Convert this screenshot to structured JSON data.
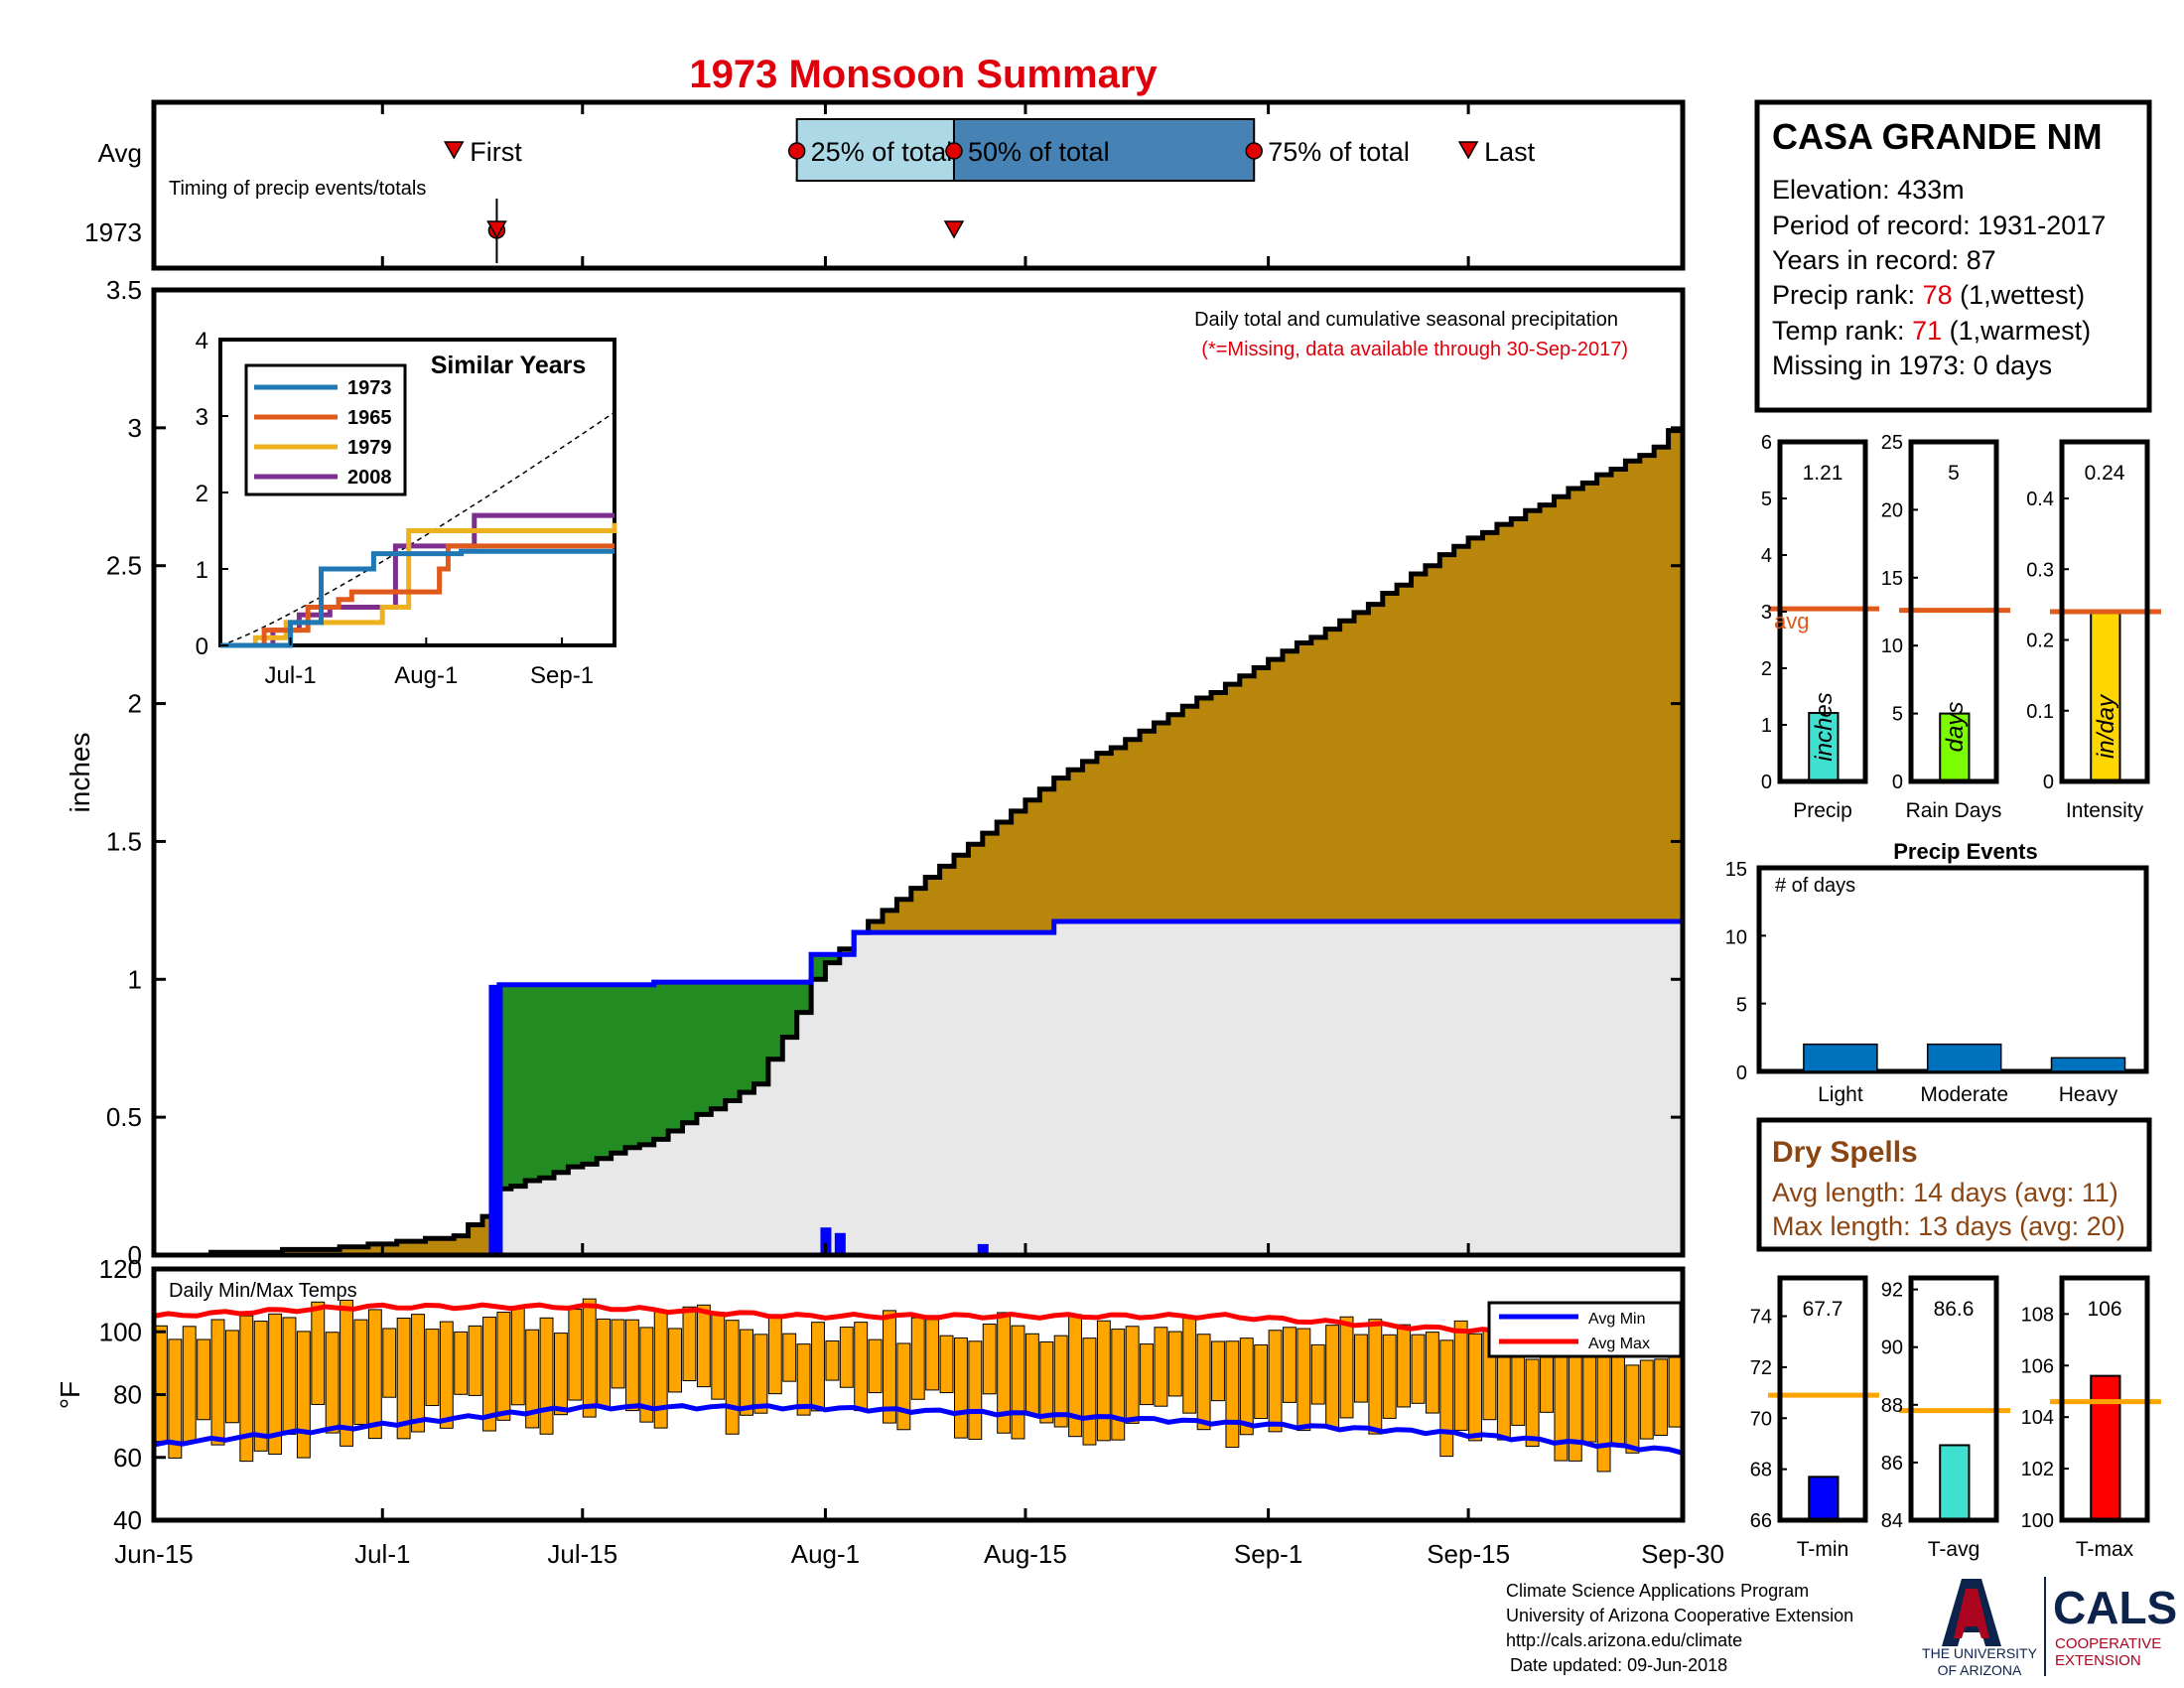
{
  "title": "1973 Monsoon Summary",
  "timing": {
    "row_avg": "Avg",
    "row_year": "1973",
    "caption": "Timing of precip events/totals",
    "first": "First",
    "p25": "25% of total",
    "p50": "50% of total",
    "p75": "75% of total",
    "last": "Last",
    "avg_first_day": 21,
    "avg_25_day": 45,
    "avg_50_day": 56,
    "avg_75_day": 77,
    "avg_last_day": 92,
    "year_first_day": 24,
    "year_last_day": 56
  },
  "station": {
    "name": "CASA GRANDE NM",
    "elevation_label": "Elevation:",
    "elevation": "433m",
    "period_label": "Period of record:",
    "period": "1931-2017",
    "years_label": "Years in record:",
    "years": "87",
    "precip_rank_label": "Precip rank:",
    "precip_rank": "78",
    "precip_rank_note": "(1,wettest)",
    "temp_rank_label": "Temp rank:",
    "temp_rank": "71",
    "temp_rank_note": "(1,warmest)",
    "missing_label": "Missing in 1973:",
    "missing": "0 days"
  },
  "main": {
    "note1": "Daily total and cumulative seasonal precipitation",
    "note2": "(*=Missing, data available through 30-Sep-2017)",
    "ylabel": "inches",
    "yticks": [
      "0",
      "0.5",
      "1",
      "1.5",
      "2",
      "2.5",
      "3",
      "3.5"
    ],
    "xticks": [
      "Jun-15",
      "Jul-1",
      "Jul-15",
      "Aug-1",
      "Aug-15",
      "Sep-1",
      "Sep-15",
      "Sep-30"
    ]
  },
  "inset": {
    "title": "Similar Years",
    "legend": [
      "1973",
      "1965",
      "1979",
      "2008"
    ],
    "yticks": [
      "0",
      "1",
      "2",
      "3",
      "4"
    ],
    "xticks": [
      "Jul-1",
      "Aug-1",
      "Sep-1"
    ]
  },
  "temps": {
    "title": "Daily Min/Max Temps",
    "ylabel": "°F",
    "yticks": [
      "40",
      "60",
      "80",
      "100",
      "120"
    ],
    "legend_min": "Avg Min",
    "legend_max": "Avg Max"
  },
  "mini": {
    "precip": {
      "value": "1.21",
      "label": "Precip",
      "unit": "inches",
      "avg_label": "avg",
      "yticks": [
        "0",
        "1",
        "2",
        "3",
        "4",
        "5",
        "6"
      ],
      "bar": 1.21,
      "avg": 3.05
    },
    "raindays": {
      "value": "5",
      "label": "Rain Days",
      "unit": "days",
      "yticks": [
        "0",
        "5",
        "10",
        "15",
        "20",
        "25"
      ],
      "bar": 5,
      "avg": 12.6
    },
    "intensity": {
      "value": "0.24",
      "label": "Intensity",
      "unit": "in/day",
      "yticks": [
        "0",
        "0.1",
        "0.2",
        "0.3",
        "0.4"
      ],
      "bar": 0.24,
      "avg": 0.24
    }
  },
  "events": {
    "title": "Precip Events",
    "ylabel": "# of days",
    "yticks": [
      "0",
      "5",
      "10",
      "15"
    ],
    "categories": [
      "Light",
      "Moderate",
      "Heavy"
    ],
    "values": [
      2,
      2,
      1
    ]
  },
  "dry": {
    "title": "Dry Spells",
    "avg_line": "Avg length: 14 days (avg: 11)",
    "max_line": "Max length: 13 days (avg: 20)"
  },
  "tbox": {
    "tmin": {
      "value": "67.7",
      "label": "T-min",
      "yticks": [
        "66",
        "68",
        "70",
        "72",
        "74"
      ],
      "bar": 67.7,
      "avg": 70.9
    },
    "tavg": {
      "value": "86.6",
      "label": "T-avg",
      "yticks": [
        "84",
        "86",
        "88",
        "90",
        "92"
      ],
      "bar": 86.6,
      "avg": 87.8
    },
    "tmax": {
      "value": "106",
      "label": "T-max",
      "yticks": [
        "100",
        "102",
        "104",
        "106",
        "108"
      ],
      "bar": 105.6,
      "avg": 104.6
    }
  },
  "footer": {
    "line1": "Climate Science Applications Program",
    "line2": "University of Arizona Cooperative Extension",
    "line3": "http://cals.arizona.edu/climate",
    "line4": "Date updated: 09-Jun-2018",
    "ua1": "THE UNIVERSITY",
    "ua2": "OF ARIZONA",
    "cals": "CALS",
    "cals1": "COOPERATIVE",
    "cals2": "EXTENSION"
  },
  "colors": {
    "title": "#e0000b",
    "avg_fill": "#b8860b",
    "above_fill": "#228b22",
    "year_fill": "#e8e8e8",
    "year_line": "#0000ff",
    "temp_bar": "#ffa500",
    "avg_max": "#ff0000",
    "avg_min": "#0000ff",
    "s1973": "#1f77b4",
    "s1965": "#e05a1c",
    "s1979": "#edb120",
    "s2008": "#7e2f8e"
  },
  "chart_data": [
    {
      "type": "area",
      "title": "",
      "xlabel": "",
      "ylabel": "inches",
      "x_days_from_jun15": [
        0,
        7,
        14,
        21,
        23,
        24,
        27,
        35,
        42,
        45,
        46,
        49,
        56,
        63,
        70,
        77,
        84,
        91,
        98,
        105,
        107
      ],
      "series": [
        {
          "values": [
            0,
            0.01,
            0.03,
            0.07,
            0.14,
            0.24,
            0.28,
            0.42,
            0.62,
            0.88,
            1.0,
            1.17,
            1.45,
            1.73,
            1.93,
            2.13,
            2.33,
            2.57,
            2.75,
            2.93,
            3.04
          ]
        },
        {
          "name": "1973",
          "values": [
            0,
            0,
            0,
            0,
            0,
            0.98,
            0.98,
            0.99,
            0.99,
            0.99,
            1.09,
            1.17,
            1.17,
            1.21,
            1.21,
            1.21,
            1.21,
            1.21,
            1.21,
            1.21,
            1.21
          ]
        }
      ],
      "daily_1973": [
        {
          "day": 47,
          "value": 0.1
        },
        {
          "day": 48,
          "value": 0.08
        },
        {
          "day": 58,
          "value": 0.04
        }
      ],
      "ylim": [
        0,
        3.5
      ]
    },
    {
      "type": "line",
      "title": "Similar Years",
      "series": [
        {
          "name": "1973",
          "x_days": [
            0,
            16,
            23,
            30,
            35,
            50,
            55,
            90
          ],
          "values": [
            0,
            0.3,
            1.0,
            1.0,
            1.2,
            1.2,
            1.23,
            1.23
          ]
        },
        {
          "name": "1965",
          "x_days": [
            0,
            10,
            20,
            27,
            30,
            41,
            50,
            52,
            90
          ],
          "values": [
            0,
            0.2,
            0.5,
            0.6,
            0.7,
            0.7,
            1.0,
            1.3,
            1.3
          ]
        },
        {
          "name": "1979",
          "x_days": [
            0,
            8,
            15,
            30,
            37,
            43,
            60,
            75,
            90
          ],
          "values": [
            0,
            0.1,
            0.3,
            0.3,
            0.5,
            1.5,
            1.5,
            1.5,
            1.6
          ]
        },
        {
          "name": "2008",
          "x_days": [
            0,
            12,
            18,
            25,
            33,
            40,
            55,
            58,
            90
          ],
          "values": [
            0,
            0.2,
            0.4,
            0.5,
            0.5,
            1.3,
            1.3,
            1.7,
            1.7
          ]
        }
      ],
      "ylim": [
        0,
        4
      ]
    },
    {
      "type": "bar",
      "title": "Daily Min/Max Temps",
      "ylabel": "°F",
      "avg_max": {
        "name": "Avg Max",
        "x_days": [
          0,
          15,
          30,
          45,
          60,
          75,
          90,
          107
        ],
        "values": [
          105,
          108,
          108,
          105,
          105,
          105,
          101,
          97
        ]
      },
      "avg_min": {
        "name": "Avg Min",
        "x_days": [
          0,
          15,
          30,
          45,
          60,
          75,
          90,
          107
        ],
        "values": [
          64,
          70,
          76,
          76,
          74,
          71,
          68,
          62
        ]
      },
      "ylim": [
        40,
        120
      ]
    },
    {
      "type": "bar",
      "title": "Precip Events",
      "ylabel": "# of days",
      "categories": [
        "Light",
        "Moderate",
        "Heavy"
      ],
      "values": [
        2,
        2,
        1
      ],
      "ylim": [
        0,
        15
      ]
    },
    {
      "type": "bar",
      "title": "",
      "categories": [
        "Precip",
        "Rain Days",
        "Intensity"
      ],
      "values": [
        1.21,
        5,
        0.24
      ]
    },
    {
      "type": "bar",
      "title": "",
      "categories": [
        "T-min",
        "T-avg",
        "T-max"
      ],
      "values": [
        67.7,
        86.6,
        106
      ]
    }
  ]
}
